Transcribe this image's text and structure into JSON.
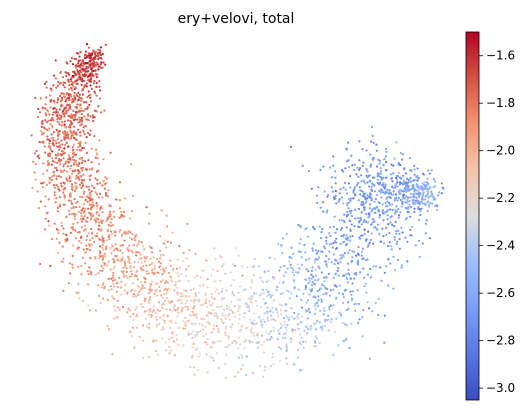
{
  "chart_data": {
    "type": "scatter",
    "title": "ery+velovi, total",
    "colormap": "coolwarm",
    "colorbar": {
      "range": [
        -3.05,
        -1.5
      ],
      "ticks": [
        -1.6,
        -1.8,
        -2.0,
        -2.2,
        -2.4,
        -2.6,
        -2.8,
        -3.0
      ],
      "tick_labels": [
        "−1.6",
        "−1.8",
        "−2.0",
        "−2.2",
        "−2.4",
        "−2.6",
        "−2.8",
        "−3.0"
      ]
    },
    "axes_visible": false,
    "points_description": "single-cell embedding; values high (about -1.6) at the left arm, decreasing to about -2.8 at the right lobe"
  },
  "colors": {
    "low": "#3b4cc0",
    "mid": "#dddddd",
    "high": "#b40426"
  }
}
